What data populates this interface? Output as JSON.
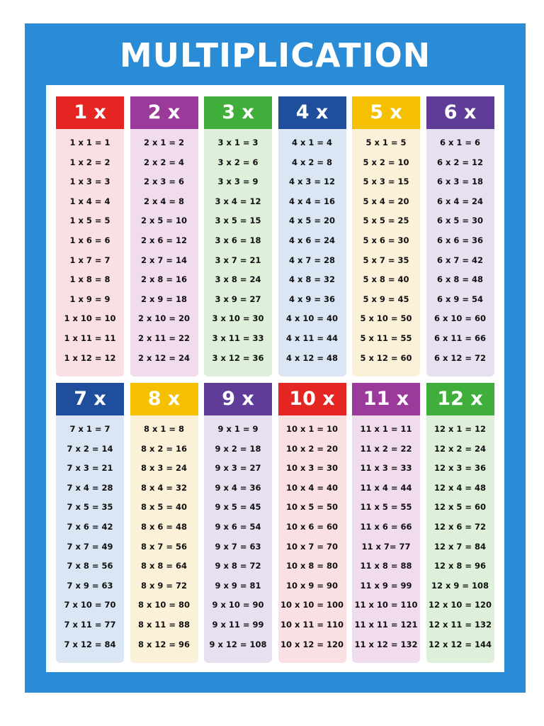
{
  "title": "MULTIPLICATION",
  "tables": [
    {
      "header": "1 x",
      "rows": [
        "1 x 1 = 1",
        "1 x 2 = 2",
        "1 x 3 = 3",
        "1 x 4 = 4",
        "1 x 5 = 5",
        "1 x 6 = 6",
        "1 x 7 = 7",
        "1 x 8 = 8",
        "1 x 9 = 9",
        "1 x 10 = 10",
        "1 x 11 = 11",
        "1 x 12 = 12"
      ]
    },
    {
      "header": "2 x",
      "rows": [
        "2 x 1 = 2",
        "2 x 2 = 4",
        "2 x 3 = 6",
        "2 x 4 = 8",
        "2 x 5 = 10",
        "2 x 6 = 12",
        "2 x 7 = 14",
        "2 x 8 = 16",
        "2 x 9 = 18",
        "2 x 10 = 20",
        "2 x 11 = 22",
        "2 x 12 = 24"
      ]
    },
    {
      "header": "3 x",
      "rows": [
        "3 x 1 = 3",
        "3 x 2 = 6",
        "3 x 3 = 9",
        "3 x 4 = 12",
        "3 x 5 = 15",
        "3 x 6 = 18",
        "3 x 7 = 21",
        "3 x 8 = 24",
        "3 x 9 = 27",
        "3 x 10 = 30",
        "3 x 11 = 33",
        "3 x 12 = 36"
      ]
    },
    {
      "header": "4 x",
      "rows": [
        "4 x 1 = 4",
        "4 x 2 = 8",
        "4 x 3 = 12",
        "4 x 4 = 16",
        "4 x 5 = 20",
        "4 x 6 = 24",
        "4 x 7 = 28",
        "4 x 8 = 32",
        "4 x 9 = 36",
        "4 x 10 = 40",
        "4 x 11 = 44",
        "4 x 12 = 48"
      ]
    },
    {
      "header": "5 x",
      "rows": [
        "5 x 1 = 5",
        "5 x 2 = 10",
        "5 x 3 = 15",
        "5 x 4 = 20",
        "5 x 5 = 25",
        "5 x 6 = 30",
        "5 x 7 = 35",
        "5 x 8 = 40",
        "5 x 9 = 45",
        "5 x 10 = 50",
        "5 x 11 = 55",
        "5 x 12 = 60"
      ]
    },
    {
      "header": "6 x",
      "rows": [
        "6 x 1 = 6",
        "6 x 2 = 12",
        "6 x 3 = 18",
        "6 x 4 = 24",
        "6 x 5 = 30",
        "6 x 6 = 36",
        "6 x 7 = 42",
        "6 x 8 = 48",
        "6 x 9 = 54",
        "6 x 10 = 60",
        "6 x 11 = 66",
        "6 x 12 = 72"
      ]
    },
    {
      "header": "7 x",
      "rows": [
        "7 x 1 = 7",
        "7 x 2 = 14",
        "7 x 3 = 21",
        "7 x 4 = 28",
        "7 x 5 = 35",
        "7 x 6 = 42",
        "7 x 7 = 49",
        "7 x 8 = 56",
        "7 x 9 = 63",
        "7 x 10 = 70",
        "7 x 11 = 77",
        "7 x 12 = 84"
      ]
    },
    {
      "header": "8 x",
      "rows": [
        "8 x 1 = 8",
        "8 x 2 = 16",
        "8 x 3 = 24",
        "8 x 4 = 32",
        "8 x 5 = 40",
        "8 x 6 = 48",
        "8 x 7 = 56",
        "8 x 8 = 64",
        "8 x 9 = 72",
        "8 x 10 = 80",
        "8 x 11 = 88",
        "8 x 12 = 96"
      ]
    },
    {
      "header": "9 x",
      "rows": [
        "9 x 1 = 9",
        "9 x 2 = 18",
        "9 x 3 = 27",
        "9 x 4 = 36",
        "9 x 5 = 45",
        "9 x 6 = 54",
        "9 x 7 = 63",
        "9 x 8 = 72",
        "9 x 9 = 81",
        "9 x 10 = 90",
        "9 x 11 = 99",
        "9 x 12 = 108"
      ]
    },
    {
      "header": "10 x",
      "rows": [
        "10 x 1 = 10",
        "10 x 2 = 20",
        "10 x 3 = 30",
        "10 x 4 = 40",
        "10 x 5 = 50",
        "10 x 6 = 60",
        "10 x 7 = 70",
        "10 x 8 = 80",
        "10 x 9 = 90",
        "10 x 10 = 100",
        "10 x 11 = 110",
        "10 x 12 = 120"
      ]
    },
    {
      "header": "11 x",
      "rows": [
        "11 x 1 = 11",
        "11 x 2 = 22",
        "11 x 3 = 33",
        "11 x 4 = 44",
        "11 x 5 = 55",
        "11 x 6 = 66",
        "11 x 7= 77",
        "11 x 8 = 88",
        "11 x 9 = 99",
        "11 x 10 = 110",
        "11 x 11 = 121",
        "11 x 12 = 132"
      ]
    },
    {
      "header": "12 x",
      "rows": [
        "12 x 1 = 12",
        "12 x 2 = 24",
        "12 x 3 = 36",
        "12 x 4 = 48",
        "12 x 5 = 60",
        "12 x 6 = 72",
        "12 x 7 = 84",
        "12 x 8 = 96",
        "12 x 9 = 108",
        "12 x 10 = 120",
        "12 x 11 = 132",
        "12 x 12 = 144"
      ]
    }
  ]
}
